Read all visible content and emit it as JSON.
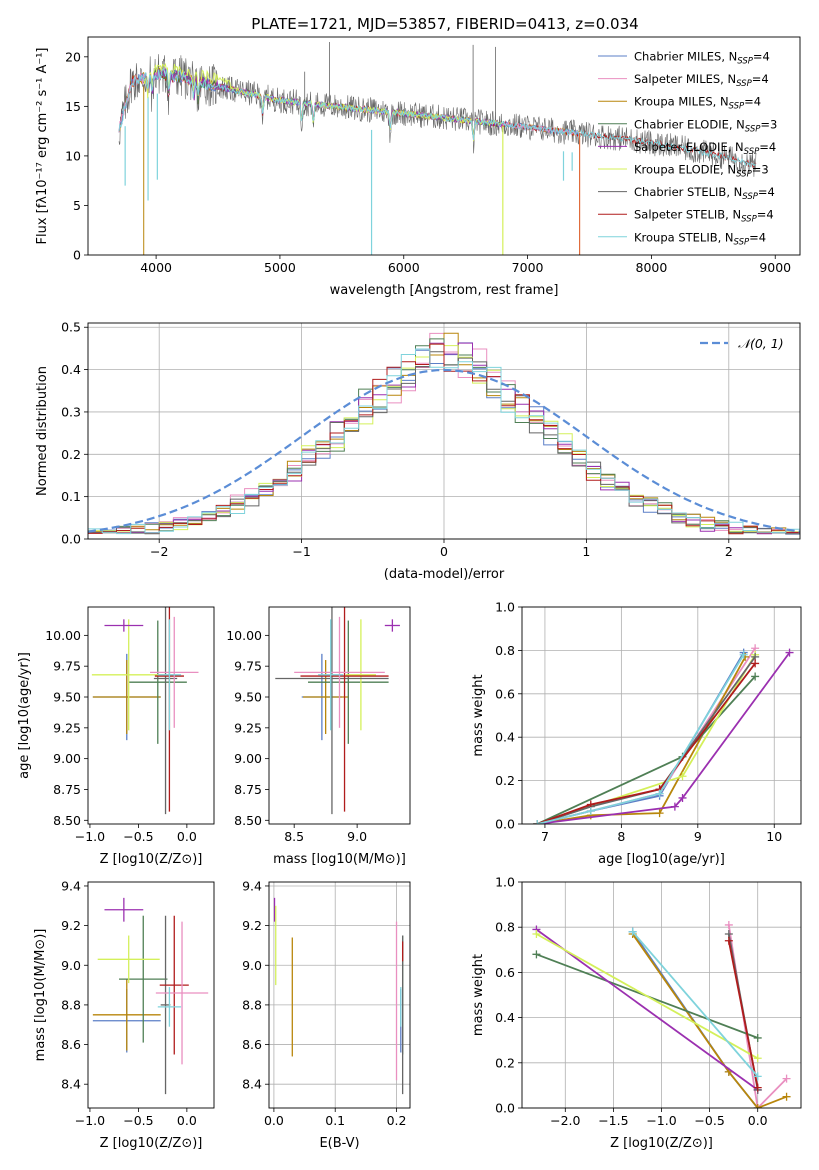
{
  "figure_title": "PLATE=1721, MJD=53857, FIBERID=0413, z=0.034",
  "series_styles": [
    {
      "name": "Chabrier MILES",
      "nssp": "4",
      "color": "#5b7fc7"
    },
    {
      "name": "Salpeter MILES",
      "nssp": "4",
      "color": "#e98fc0"
    },
    {
      "name": "Kroupa MILES",
      "nssp": "4",
      "color": "#b8860b"
    },
    {
      "name": "Chabrier ELODIE",
      "nssp": "3",
      "color": "#4f7f55"
    },
    {
      "name": "Salpeter ELODIE",
      "nssp": "4",
      "color": "#9b30b0"
    },
    {
      "name": "Kroupa ELODIE",
      "nssp": "3",
      "color": "#d4f05a"
    },
    {
      "name": "Chabrier STELIB",
      "nssp": "4",
      "color": "#666666"
    },
    {
      "name": "Salpeter STELIB",
      "nssp": "4",
      "color": "#b01c1c"
    },
    {
      "name": "Kroupa STELIB",
      "nssp": "4",
      "color": "#7fd3dc"
    }
  ],
  "chart_data": [
    {
      "id": "spectrum",
      "type": "line",
      "title": "PLATE=1721, MJD=53857, FIBERID=0413, z=0.034",
      "xlabel": "wavelength [Angstrom, rest frame]",
      "ylabel": "Flux [fλ10⁻¹⁷ erg cm⁻² s⁻¹ A⁻¹]",
      "xlim": [
        3450,
        9200
      ],
      "ylim": [
        0,
        22
      ],
      "xticks": [
        4000,
        5000,
        6000,
        7000,
        8000,
        9000
      ],
      "yticks": [
        0,
        5,
        10,
        15,
        20
      ],
      "grid": false,
      "legend": "top-right",
      "legend_entries": [
        "Chabrier MILES, N_SSP=4",
        "Salpeter MILES, N_SSP=4",
        "Kroupa MILES, N_SSP=4",
        "Chabrier ELODIE, N_SSP=3",
        "Salpeter ELODIE, N_SSP=4",
        "Kroupa ELODIE, N_SSP=3",
        "Chabrier STELIB, N_SSP=4",
        "Salpeter STELIB, N_SSP=4",
        "Kroupa STELIB, N_SSP=4"
      ],
      "continuum": {
        "x": [
          3700,
          3800,
          3900,
          4000,
          4200,
          4500,
          4800,
          5000,
          5300,
          5600,
          6000,
          6500,
          7000,
          7400,
          7800,
          8200,
          8600,
          8850
        ],
        "y": [
          12.5,
          17.5,
          17.8,
          18.3,
          18.0,
          17.0,
          16.2,
          15.6,
          15.2,
          14.8,
          14.3,
          13.6,
          12.9,
          12.3,
          11.7,
          10.9,
          9.9,
          9.0
        ]
      },
      "data_range": [
        3700,
        8850
      ],
      "model_ranges": {
        "MILES": [
          3700,
          7420
        ],
        "ELODIE": [
          3900,
          6800
        ],
        "STELIB": [
          3700,
          8850
        ]
      },
      "absorption_features": [
        3934,
        3969,
        4102,
        4304,
        4340,
        4861,
        5175,
        5270,
        5890,
        6563
      ],
      "spikes": [
        [
          5200,
          18.5
        ],
        [
          5400,
          21.5
        ],
        [
          6560,
          21.2
        ],
        [
          6740,
          21.0
        ]
      ],
      "dips": [
        [
          3750,
          7.0
        ],
        [
          3935,
          5.5
        ],
        [
          4010,
          7.6
        ],
        [
          5740,
          0
        ],
        [
          7290,
          7.5
        ],
        [
          7360,
          8.5
        ]
      ]
    },
    {
      "id": "residuals",
      "type": "step",
      "xlabel": "(data-model)/error",
      "ylabel": "Normed distribution",
      "xlim": [
        -2.5,
        2.5
      ],
      "ylim": [
        0,
        0.51
      ],
      "xticks": [
        -2,
        -1,
        0,
        1,
        2
      ],
      "yticks": [
        0.0,
        0.1,
        0.2,
        0.3,
        0.4,
        0.5
      ],
      "grid": true,
      "legend": "top-right",
      "reference_curve": {
        "label": "𝒩(0, 1)",
        "type": "gaussian",
        "mean": 0,
        "sigma": 1,
        "color": "#5b8dd6"
      },
      "bin_width": 0.1,
      "series_count": 9
    },
    {
      "id": "age_vs_Z",
      "type": "errorbar",
      "xlabel": "Z [log10(Z/Z⊙)]",
      "ylabel": "age  [log10(age/yr)]",
      "xlim": [
        -1.02,
        0.28
      ],
      "ylim": [
        8.47,
        10.23
      ],
      "xticks": [
        -1.0,
        -0.5,
        0.0
      ],
      "yticks": [
        8.5,
        8.75,
        9.0,
        9.25,
        9.5,
        9.75,
        10.0
      ],
      "points": [
        {
          "x": -0.62,
          "y": 9.5,
          "xerr": 0.35,
          "yerr": 0.35,
          "series": 0
        },
        {
          "x": -0.62,
          "y": 9.5,
          "xerr": 0.35,
          "yerr": 0.3,
          "series": 2
        },
        {
          "x": -0.3,
          "y": 9.62,
          "xerr": 0.3,
          "yerr": 0.5,
          "series": 3
        },
        {
          "x": -0.6,
          "y": 9.68,
          "xerr": 0.38,
          "yerr": 0.45,
          "series": 5
        },
        {
          "x": -0.65,
          "y": 10.08,
          "xerr": 0.2,
          "yerr": 0.05,
          "series": 4
        },
        {
          "x": -0.22,
          "y": 9.65,
          "xerr": 0.12,
          "yerr": 1.1,
          "series": 6
        },
        {
          "x": -0.18,
          "y": 9.67,
          "xerr": 0.15,
          "yerr": 1.1,
          "series": 7
        },
        {
          "x": -0.13,
          "y": 9.7,
          "xerr": 0.25,
          "yerr": 0.45,
          "series": 1
        },
        {
          "x": -0.18,
          "y": 9.68,
          "xerr": 0.12,
          "yerr": 0.45,
          "series": 8
        }
      ]
    },
    {
      "id": "age_vs_mass",
      "type": "errorbar",
      "xlabel": "mass [log10(M/M⊙)]",
      "ylabel": "",
      "xlim": [
        8.3,
        9.42
      ],
      "ylim": [
        8.47,
        10.23
      ],
      "xticks": [
        8.5,
        9.0
      ],
      "yticks": [
        8.5,
        8.75,
        9.0,
        9.25,
        9.5,
        9.75,
        10.0
      ],
      "points": [
        {
          "x": 8.72,
          "y": 9.5,
          "xerr": 0.16,
          "yerr": 0.35,
          "series": 0
        },
        {
          "x": 8.75,
          "y": 9.5,
          "xerr": 0.18,
          "yerr": 0.3,
          "series": 2
        },
        {
          "x": 8.93,
          "y": 9.62,
          "xerr": 0.32,
          "yerr": 0.5,
          "series": 3
        },
        {
          "x": 9.03,
          "y": 9.68,
          "xerr": 0.12,
          "yerr": 0.45,
          "series": 5
        },
        {
          "x": 9.28,
          "y": 10.08,
          "xerr": 0.06,
          "yerr": 0.05,
          "series": 4
        },
        {
          "x": 8.8,
          "y": 9.65,
          "xerr": 0.45,
          "yerr": 1.1,
          "series": 6
        },
        {
          "x": 8.9,
          "y": 9.67,
          "xerr": 0.35,
          "yerr": 1.1,
          "series": 7
        },
        {
          "x": 8.86,
          "y": 9.7,
          "xerr": 0.36,
          "yerr": 0.45,
          "series": 1
        },
        {
          "x": 8.79,
          "y": 9.68,
          "xerr": 0.1,
          "yerr": 0.45,
          "series": 8
        }
      ]
    },
    {
      "id": "weight_vs_age",
      "type": "line",
      "xlabel": "age  [log10(age/yr)]",
      "ylabel": "mass weight",
      "xlim": [
        6.7,
        10.35
      ],
      "ylim": [
        0,
        1.0
      ],
      "xticks": [
        7,
        8,
        9,
        10
      ],
      "yticks": [
        0.0,
        0.2,
        0.4,
        0.6,
        0.8,
        1.0
      ],
      "grid": true,
      "series": [
        {
          "series": 0,
          "x": [
            6.9,
            7.6,
            8.5,
            9.6
          ],
          "y": [
            0.0,
            0.06,
            0.13,
            0.79
          ]
        },
        {
          "series": 1,
          "x": [
            6.9,
            7.6,
            8.5,
            9.75
          ],
          "y": [
            0.0,
            0.06,
            0.14,
            0.81
          ]
        },
        {
          "series": 2,
          "x": [
            6.9,
            7.6,
            8.5,
            9.62
          ],
          "y": [
            0.0,
            0.04,
            0.05,
            0.77
          ]
        },
        {
          "series": 3,
          "x": [
            6.9,
            8.8,
            9.75
          ],
          "y": [
            0.0,
            0.31,
            0.68
          ]
        },
        {
          "series": 4,
          "x": [
            6.9,
            8.7,
            8.8,
            10.2
          ],
          "y": [
            0.0,
            0.08,
            0.12,
            0.79
          ]
        },
        {
          "series": 5,
          "x": [
            6.9,
            8.8,
            9.75
          ],
          "y": [
            0.0,
            0.22,
            0.78
          ]
        },
        {
          "series": 6,
          "x": [
            6.9,
            7.6,
            8.5,
            9.75
          ],
          "y": [
            0.0,
            0.08,
            0.16,
            0.77
          ]
        },
        {
          "series": 7,
          "x": [
            6.9,
            7.6,
            8.5,
            9.75
          ],
          "y": [
            0.0,
            0.09,
            0.16,
            0.74
          ]
        },
        {
          "series": 8,
          "x": [
            6.9,
            7.6,
            8.5,
            9.6
          ],
          "y": [
            0.0,
            0.06,
            0.14,
            0.78
          ]
        }
      ]
    },
    {
      "id": "mass_vs_Z",
      "type": "errorbar",
      "xlabel": "Z [log10(Z/Z⊙)]",
      "ylabel": "mass [log10(M/M⊙)]",
      "xlim": [
        -1.02,
        0.28
      ],
      "ylim": [
        8.28,
        9.42
      ],
      "xticks": [
        -1.0,
        -0.5,
        0.0
      ],
      "yticks": [
        8.4,
        8.6,
        8.8,
        9.0,
        9.2,
        9.4
      ],
      "points": [
        {
          "x": -0.62,
          "y": 8.72,
          "xerr": 0.35,
          "yerr": 0.16,
          "series": 0
        },
        {
          "x": -0.62,
          "y": 8.75,
          "xerr": 0.35,
          "yerr": 0.18,
          "series": 2
        },
        {
          "x": -0.45,
          "y": 8.93,
          "xerr": 0.25,
          "yerr": 0.32,
          "series": 3
        },
        {
          "x": -0.6,
          "y": 9.03,
          "xerr": 0.32,
          "yerr": 0.12,
          "series": 5
        },
        {
          "x": -0.65,
          "y": 9.28,
          "xerr": 0.2,
          "yerr": 0.06,
          "series": 4
        },
        {
          "x": -0.22,
          "y": 8.8,
          "xerr": 0.05,
          "yerr": 0.45,
          "series": 6
        },
        {
          "x": -0.13,
          "y": 8.9,
          "xerr": 0.15,
          "yerr": 0.35,
          "series": 7
        },
        {
          "x": -0.05,
          "y": 8.86,
          "xerr": 0.27,
          "yerr": 0.36,
          "series": 1
        },
        {
          "x": -0.18,
          "y": 8.79,
          "xerr": 0.12,
          "yerr": 0.1,
          "series": 8
        }
      ]
    },
    {
      "id": "mass_vs_ebv",
      "type": "errorbar",
      "xlabel": "E(B-V)",
      "ylabel": "",
      "xlim": [
        -0.008,
        0.222
      ],
      "ylim": [
        8.28,
        9.42
      ],
      "xticks": [
        0.0,
        0.1,
        0.2
      ],
      "yticks": [
        8.4,
        8.6,
        8.8,
        9.0,
        9.2,
        9.4
      ],
      "grid": true,
      "points": [
        {
          "x": 0.207,
          "y": 8.72,
          "xerr": 0,
          "yerr": 0.16,
          "series": 0
        },
        {
          "x": 0.2,
          "y": 8.82,
          "xerr": 0,
          "yerr": 0.4,
          "series": 1
        },
        {
          "x": 0.03,
          "y": 8.84,
          "xerr": 0,
          "yerr": 0.3,
          "series": 2
        },
        {
          "x": 0.21,
          "y": 8.85,
          "xerr": 0,
          "yerr": 0.3,
          "series": 3
        },
        {
          "x": 0.001,
          "y": 9.28,
          "xerr": 0,
          "yerr": 0.06,
          "series": 4
        },
        {
          "x": 0.003,
          "y": 9.1,
          "xerr": 0,
          "yerr": 0.2,
          "series": 5
        },
        {
          "x": 0.21,
          "y": 8.75,
          "xerr": 0,
          "yerr": 0.4,
          "series": 6
        },
        {
          "x": 0.21,
          "y": 9.07,
          "xerr": 0,
          "yerr": 0.05,
          "series": 7
        },
        {
          "x": 0.207,
          "y": 8.79,
          "xerr": 0,
          "yerr": 0.1,
          "series": 8
        }
      ]
    },
    {
      "id": "weight_vs_Z",
      "type": "line",
      "xlabel": "Z [log10(Z/Z⊙)]",
      "ylabel": "mass weight",
      "xlim": [
        -2.45,
        0.45
      ],
      "ylim": [
        0,
        1.0
      ],
      "xticks": [
        -2.0,
        -1.5,
        -1.0,
        -0.5,
        0.0
      ],
      "yticks": [
        0.0,
        0.2,
        0.4,
        0.6,
        0.8,
        1.0
      ],
      "grid": true,
      "series": [
        {
          "series": 0,
          "x": [
            -1.3,
            -0.3,
            0.0
          ],
          "y": [
            0.78,
            0.16,
            0.0
          ]
        },
        {
          "series": 1,
          "x": [
            -0.3,
            0.0,
            0.3
          ],
          "y": [
            0.81,
            0.0,
            0.13
          ]
        },
        {
          "series": 2,
          "x": [
            -1.3,
            -0.3,
            0.0,
            0.3
          ],
          "y": [
            0.77,
            0.16,
            0.0,
            0.05
          ]
        },
        {
          "series": 3,
          "x": [
            -2.3,
            0.0
          ],
          "y": [
            0.68,
            0.31
          ]
        },
        {
          "series": 4,
          "x": [
            -2.3,
            0.0
          ],
          "y": [
            0.79,
            0.08
          ]
        },
        {
          "series": 5,
          "x": [
            -2.3,
            0.0
          ],
          "y": [
            0.77,
            0.22
          ]
        },
        {
          "series": 6,
          "x": [
            -0.3,
            0.0
          ],
          "y": [
            0.77,
            0.08
          ]
        },
        {
          "series": 7,
          "x": [
            -0.3,
            0.0
          ],
          "y": [
            0.74,
            0.09
          ]
        },
        {
          "series": 8,
          "x": [
            -1.3,
            0.0
          ],
          "y": [
            0.78,
            0.14
          ]
        }
      ]
    }
  ]
}
